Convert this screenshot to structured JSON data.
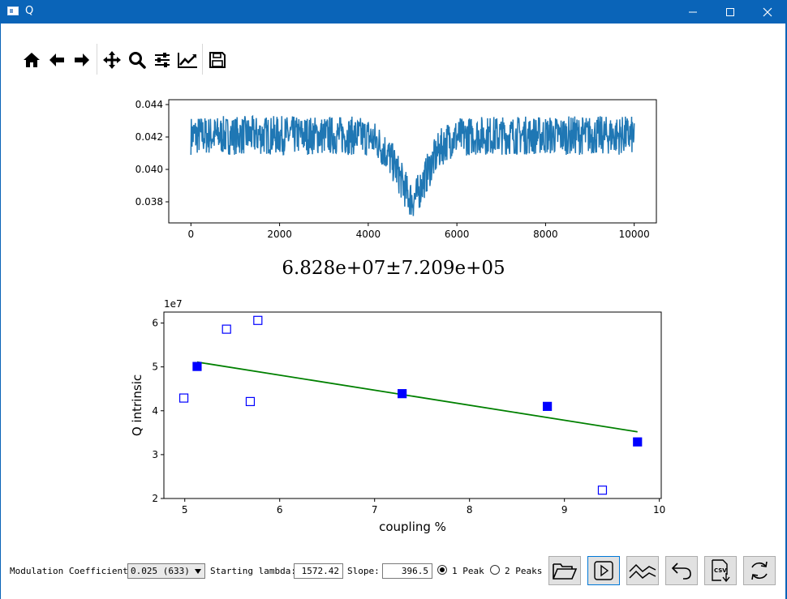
{
  "window": {
    "title": "Q"
  },
  "toolbar": {
    "icons": [
      "home-icon",
      "back-icon",
      "forward-icon",
      "pan-icon",
      "zoom-icon",
      "configure-subplots-icon",
      "edit-axis-icon",
      "save-icon"
    ]
  },
  "fit_result": "6.828e+07±7.209e+05",
  "chart_data": [
    {
      "type": "line",
      "xlim": [
        -500,
        10500
      ],
      "ylim": [
        0.0367,
        0.0443
      ],
      "xticks": [
        "0",
        "2000",
        "4000",
        "6000",
        "8000",
        "10000"
      ],
      "yticks": [
        "0.038",
        "0.040",
        "0.042",
        "0.044"
      ],
      "series": [
        {
          "color": "#1f77b4",
          "x": [
            0,
            500,
            1000,
            1500,
            2000,
            2500,
            3000,
            3500,
            4000,
            4200,
            4400,
            4600,
            4800,
            4900,
            5000,
            5100,
            5200,
            5400,
            5600,
            5800,
            6000,
            6500,
            7000,
            7500,
            8000,
            8500,
            9000,
            9500,
            10000
          ],
          "y": [
            0.0421,
            0.0421,
            0.0421,
            0.0421,
            0.0421,
            0.0421,
            0.0421,
            0.0421,
            0.042,
            0.0417,
            0.0411,
            0.0402,
            0.039,
            0.0384,
            0.0381,
            0.0384,
            0.039,
            0.0402,
            0.0412,
            0.0418,
            0.042,
            0.0421,
            0.0421,
            0.0421,
            0.0421,
            0.0421,
            0.0421,
            0.0421,
            0.0421
          ],
          "noise_band": 0.0012
        }
      ]
    },
    {
      "type": "scatter",
      "xlabel": "coupling %",
      "ylabel": "Q intrinsic",
      "yscale_label": "1e7",
      "xlim": [
        4.78,
        10.02
      ],
      "ylim": [
        2.0,
        6.25
      ],
      "xticks": [
        "5",
        "6",
        "7",
        "8",
        "9",
        "10"
      ],
      "yticks": [
        "2",
        "3",
        "4",
        "5",
        "6"
      ],
      "series": [
        {
          "marker": "square-filled",
          "color": "#0000ff",
          "x": [
            5.13,
            7.29,
            8.82,
            9.77
          ],
          "y": [
            5.01,
            4.39,
            4.1,
            3.29
          ]
        },
        {
          "marker": "square-open",
          "color": "#0000ff",
          "x": [
            4.99,
            5.44,
            5.69,
            5.77,
            9.4
          ],
          "y": [
            4.29,
            5.86,
            4.21,
            6.06,
            2.19
          ]
        },
        {
          "marker": "line",
          "color": "#008000",
          "x": [
            5.13,
            9.77
          ],
          "y": [
            5.11,
            3.52
          ]
        }
      ]
    }
  ],
  "controls": {
    "modulation_label": "Modulation Coefficient:",
    "modulation_value": "0.025 (633)",
    "lambda_label": "Starting lambda:",
    "lambda_value": "1572.42",
    "slope_label": "Slope:",
    "slope_value": "396.5",
    "peak1_label": "1 Peak",
    "peak2_label": "2 Peaks",
    "peak_selected": "1 Peak",
    "buttons": [
      "open-folder-icon",
      "play-icon",
      "trend-icon",
      "undo-icon",
      "csv-export-icon",
      "refresh-icon"
    ]
  }
}
